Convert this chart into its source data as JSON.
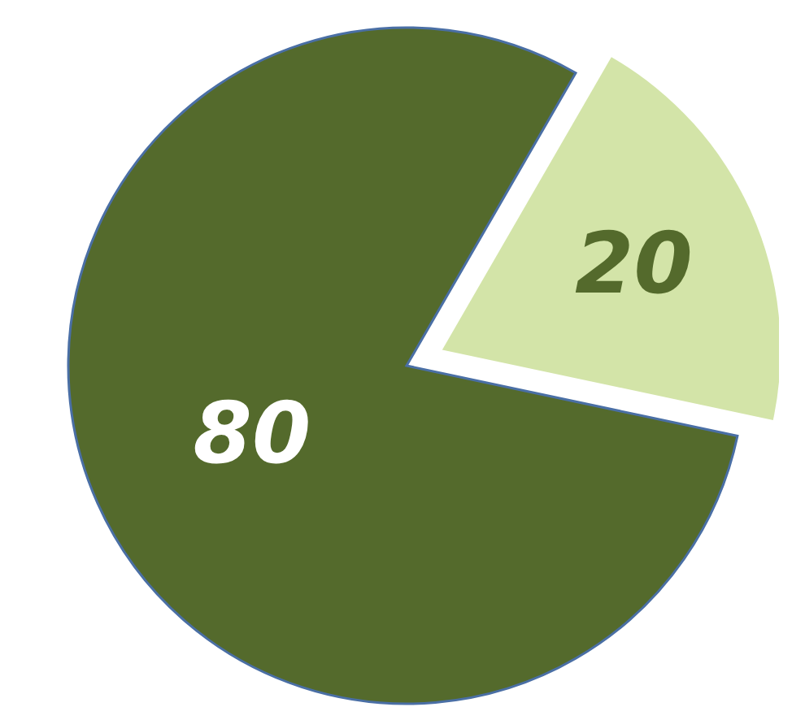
{
  "chart_data": {
    "type": "pie",
    "categories": [
      null,
      null
    ],
    "values": [
      80,
      20
    ],
    "colors": [
      "#546a2c",
      "#d3e4a8"
    ],
    "data_labels": true
  }
}
